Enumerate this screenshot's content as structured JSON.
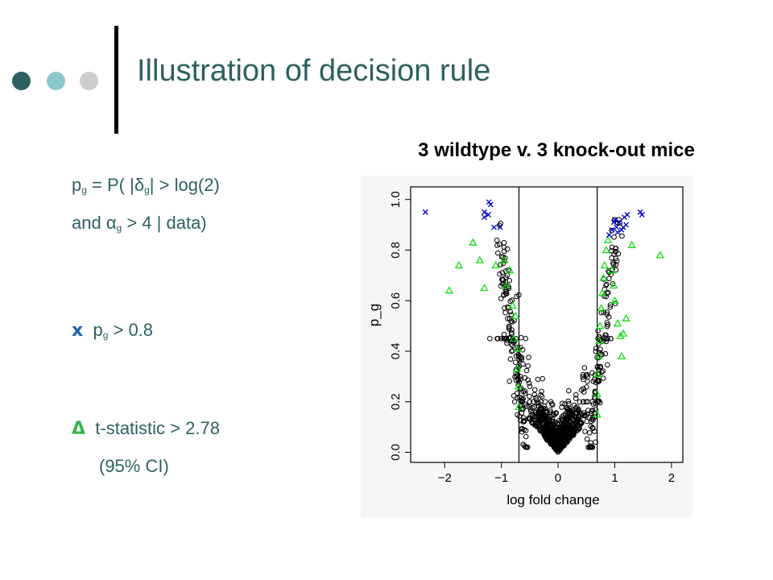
{
  "slide": {
    "title": "Illustration of decision rule",
    "colors": {
      "title": "#2e6062",
      "body": "#2e6062",
      "x_symbol": "#1f5fae",
      "triangle_symbol": "#36b24a",
      "dot_dark": "#2e6062",
      "dot_mid": "#8dc8cc",
      "dot_light": "#cccccc",
      "accent_line": "#000000"
    }
  },
  "left_text": {
    "line1": {
      "p": "p",
      "sub_g": "g",
      "eq": " = P( |δ",
      "sub_g2": "g",
      "rest": "| > log(2)"
    },
    "line2": {
      "and": "and ",
      "alpha": "α",
      "sub_g": "g",
      "rest": " > 4 | data)"
    },
    "line3": {
      "symbol": "x",
      "p": "p",
      "sub_g": "g",
      "rest": " > 0.8"
    },
    "line4": {
      "symbol": "Δ",
      "rest": "t-statistic > 2.78"
    },
    "line5": "(95% CI)"
  },
  "chart_data": {
    "type": "scatter",
    "title": "3 wildtype v. 3 knock-out mice",
    "xlabel": "log fold change",
    "ylabel": "p_g",
    "xlim": [
      -2.6,
      2.2
    ],
    "ylim": [
      -0.04,
      1.05
    ],
    "xticks": [
      -2,
      -1,
      0,
      1,
      2
    ],
    "xtick_labels": [
      "−2",
      "−1",
      "0",
      "1",
      "2"
    ],
    "yticks": [
      0.0,
      0.2,
      0.4,
      0.6,
      0.8,
      1.0
    ],
    "ytick_labels": [
      "0.0",
      "0.2",
      "0.4",
      "0.6",
      "0.8",
      "1.0"
    ],
    "vlines": [
      -0.69,
      0.69
    ],
    "series": [
      {
        "marker": "x",
        "color": "#0000cc",
        "points": [
          [
            -2.34,
            0.95
          ],
          [
            -1.3,
            0.95
          ],
          [
            -1.3,
            0.93
          ],
          [
            -1.23,
            0.94
          ],
          [
            -1.22,
            0.99
          ],
          [
            -1.19,
            0.98
          ],
          [
            -1.13,
            0.89
          ],
          [
            -1.02,
            0.89
          ],
          [
            0.9,
            0.86
          ],
          [
            0.95,
            0.88
          ],
          [
            0.98,
            0.91
          ],
          [
            1.0,
            0.92
          ],
          [
            1.03,
            0.89
          ],
          [
            1.05,
            0.87
          ],
          [
            1.08,
            0.91
          ],
          [
            1.12,
            0.88
          ],
          [
            1.15,
            0.89
          ],
          [
            1.17,
            0.93
          ],
          [
            1.2,
            0.9
          ],
          [
            1.22,
            0.94
          ],
          [
            1.45,
            0.95
          ],
          [
            1.48,
            0.94
          ]
        ]
      },
      {
        "marker": "triangle",
        "color": "#00dd00",
        "points": [
          [
            -1.92,
            0.64
          ],
          [
            -1.75,
            0.74
          ],
          [
            -1.5,
            0.83
          ],
          [
            -1.38,
            0.76
          ],
          [
            -1.3,
            0.65
          ],
          [
            -1.1,
            0.74
          ],
          [
            -0.95,
            0.76
          ],
          [
            -0.92,
            0.66
          ],
          [
            -0.85,
            0.72
          ],
          [
            -0.8,
            0.58
          ],
          [
            -0.78,
            0.45
          ],
          [
            -0.75,
            0.54
          ],
          [
            -0.72,
            0.33
          ],
          [
            -0.71,
            0.41
          ],
          [
            -0.7,
            0.26
          ],
          [
            -0.69,
            0.18
          ],
          [
            0.69,
            0.15
          ],
          [
            0.69,
            0.23
          ],
          [
            0.7,
            0.31
          ],
          [
            0.72,
            0.38
          ],
          [
            0.73,
            0.44
          ],
          [
            0.74,
            0.5
          ],
          [
            0.76,
            0.57
          ],
          [
            0.78,
            0.63
          ],
          [
            0.8,
            0.69
          ],
          [
            0.82,
            0.74
          ],
          [
            0.85,
            0.8
          ],
          [
            0.88,
            0.84
          ],
          [
            0.95,
            0.72
          ],
          [
            0.98,
            0.66
          ],
          [
            1.0,
            0.6
          ],
          [
            1.05,
            0.51
          ],
          [
            1.1,
            0.46
          ],
          [
            1.12,
            0.38
          ],
          [
            1.15,
            0.47
          ],
          [
            1.2,
            0.53
          ],
          [
            1.3,
            0.82
          ],
          [
            1.8,
            0.78
          ]
        ]
      },
      {
        "marker": "circle",
        "color": "#000000",
        "points": []
      }
    ]
  }
}
